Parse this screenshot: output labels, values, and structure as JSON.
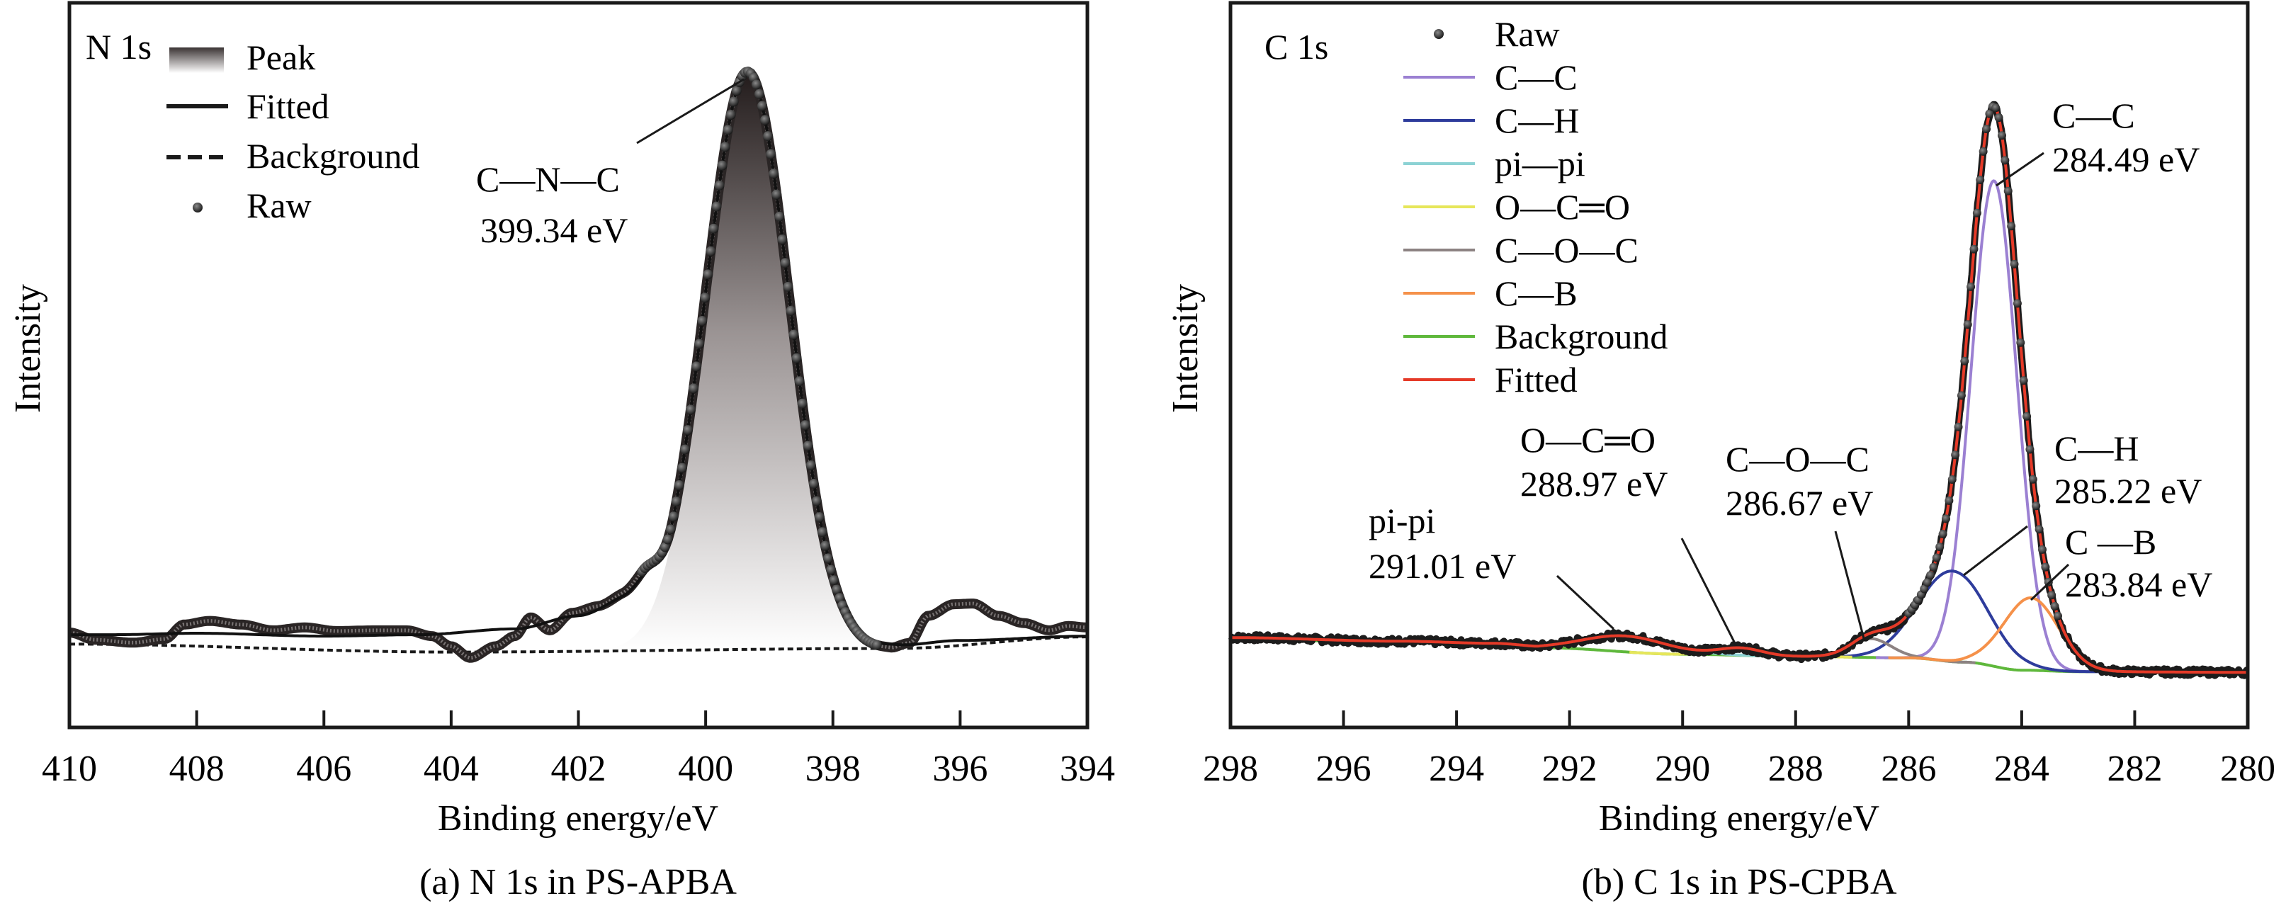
{
  "chart_data": [
    {
      "type": "line",
      "panel": "a",
      "caption": "(a) N 1s in PS-APBA",
      "tag": "N 1s",
      "title": "",
      "xlabel": "Binding energy/eV",
      "ylabel": "Intensity",
      "xlim": [
        410,
        394
      ],
      "ylim": [
        0,
        100
      ],
      "x_ticks": [
        410,
        408,
        406,
        404,
        402,
        400,
        398,
        396,
        394
      ],
      "y_ticks": [],
      "grid": false,
      "legend_position": "top-left",
      "legend": [
        {
          "label": "Peak",
          "marker": "gradient-fill",
          "color": "#2a2424"
        },
        {
          "label": "Fitted",
          "marker": "solid-line",
          "color": "#1a1a1a"
        },
        {
          "label": "Background",
          "marker": "dashed-line",
          "color": "#1a1a1a"
        },
        {
          "label": "Raw",
          "marker": "dot",
          "color": "#1a1a1a"
        }
      ],
      "peaks": [
        {
          "name": "C—N—C",
          "center": 399.34,
          "amplitude": 79.5,
          "fwhm": 1.55
        }
      ],
      "background": {
        "style": "dashed",
        "points": [
          [
            410,
            11.5
          ],
          [
            404,
            10.4
          ],
          [
            397,
            10.9
          ],
          [
            394,
            12.5
          ]
        ]
      },
      "raw_baseline": [
        [
          410,
          13.1
        ],
        [
          409.6,
          12.1
        ],
        [
          409,
          11.7
        ],
        [
          408.5,
          12.2
        ],
        [
          408.2,
          14.2
        ],
        [
          407.8,
          14.7
        ],
        [
          407.3,
          14.2
        ],
        [
          406.8,
          13.4
        ],
        [
          406.3,
          13.8
        ],
        [
          405.8,
          13.3
        ],
        [
          405.2,
          13.4
        ],
        [
          404.7,
          13.4
        ],
        [
          404.3,
          12.6
        ],
        [
          404,
          11.2
        ],
        [
          403.7,
          9.6
        ],
        [
          403.3,
          11.2
        ],
        [
          403,
          12.6
        ],
        [
          402.75,
          15.2
        ],
        [
          402.45,
          13.4
        ],
        [
          402.1,
          15.8
        ],
        [
          401.7,
          16.6
        ],
        [
          401.3,
          17.6
        ],
        [
          401,
          18.2
        ],
        [
          400.5,
          12.5
        ],
        [
          399.3,
          11.0
        ],
        [
          398.2,
          10.8
        ],
        [
          397.5,
          10.6
        ],
        [
          397.1,
          10.8
        ],
        [
          396.8,
          11.6
        ],
        [
          396.5,
          15.4
        ],
        [
          396.1,
          17.0
        ],
        [
          395.8,
          17.1
        ],
        [
          395.4,
          15.4
        ],
        [
          395.0,
          14.4
        ],
        [
          394.6,
          13.4
        ],
        [
          394.3,
          14.0
        ],
        [
          394,
          13.8
        ]
      ],
      "fitted_baseline": [
        [
          410,
          12.8
        ],
        [
          409.3,
          12.8
        ],
        [
          408,
          13.0
        ],
        [
          406,
          12.6
        ],
        [
          404.5,
          12.8
        ],
        [
          403,
          13.6
        ],
        [
          402,
          15.4
        ],
        [
          401.3,
          17.2
        ],
        [
          401,
          17.6
        ],
        [
          400.5,
          12.5
        ],
        [
          399.3,
          11.0
        ],
        [
          397.5,
          10.9
        ],
        [
          397,
          11.3
        ],
        [
          396,
          12.0
        ],
        [
          394,
          12.6
        ]
      ],
      "annotations": [
        {
          "line1": "C—N—C",
          "line2": "399.34 eV",
          "target_energy": 399.34
        }
      ]
    },
    {
      "type": "line",
      "panel": "b",
      "caption": "(b) C 1s in PS-CPBA",
      "tag": "C 1s",
      "title": "",
      "xlabel": "Binding energy/eV",
      "ylabel": "Intensity",
      "xlim": [
        298,
        280
      ],
      "ylim": [
        0,
        100
      ],
      "x_ticks": [
        298,
        296,
        294,
        292,
        290,
        288,
        286,
        284,
        282,
        280
      ],
      "y_ticks": [],
      "grid": false,
      "legend_position": "top-left",
      "legend": [
        {
          "label": "Raw",
          "marker": "dot",
          "color": "#1a1a1a"
        },
        {
          "label": "C—C",
          "marker": "solid-line",
          "color": "#9b80d2"
        },
        {
          "label": "C—H",
          "marker": "solid-line",
          "color": "#2e3c9c"
        },
        {
          "label": "pi—pi",
          "marker": "solid-line",
          "color": "#8cd2d4"
        },
        {
          "label": "O—C═O",
          "marker": "solid-line",
          "color": "#e6e65a"
        },
        {
          "label": "C—O—C",
          "marker": "solid-line",
          "color": "#8c8282"
        },
        {
          "label": "C—B",
          "marker": "solid-line",
          "color": "#f5914a"
        },
        {
          "label": "Background",
          "marker": "solid-line",
          "color": "#5fb83c"
        },
        {
          "label": "Fitted",
          "marker": "solid-line",
          "color": "#e53a28"
        }
      ],
      "components": [
        {
          "name": "C—C",
          "center": 284.49,
          "amplitude": 67.0,
          "fwhm": 0.95,
          "color": "#9b80d2"
        },
        {
          "name": "C—H",
          "center": 285.22,
          "amplitude": 12.5,
          "fwhm": 1.45,
          "color": "#2e3c9c"
        },
        {
          "name": "pi—pi",
          "center": 291.01,
          "amplitude": 2.2,
          "fwhm": 1.7,
          "color": "#8cd2d4"
        },
        {
          "name": "O—C═O",
          "center": 288.97,
          "amplitude": 1.0,
          "fwhm": 0.9,
          "color": "#e6e65a"
        },
        {
          "name": "C—O—C",
          "center": 286.67,
          "amplitude": 2.6,
          "fwhm": 0.85,
          "color": "#8c8282"
        },
        {
          "name": "C—B",
          "center": 283.84,
          "amplitude": 10.0,
          "fwhm": 1.15,
          "color": "#f5914a"
        }
      ],
      "background": {
        "color": "#5fb83c",
        "points": [
          [
            298,
            12.1
          ],
          [
            293.8,
            11.6
          ],
          [
            292.5,
            11.0
          ],
          [
            290,
            10.1
          ],
          [
            288,
            9.8
          ],
          [
            286,
            9.6
          ],
          [
            285,
            9.0
          ],
          [
            284,
            7.9
          ],
          [
            283,
            7.7
          ],
          [
            280,
            7.6
          ]
        ]
      },
      "raw_offset_left": [
        [
          298,
          12.4
        ],
        [
          295,
          11.9
        ],
        [
          293.3,
          11.6
        ],
        [
          292.5,
          11.2
        ]
      ],
      "fitted_color": "#e53a28",
      "annotations": [
        {
          "line1": "pi-pi",
          "line2": "291.01 eV",
          "target_energy": 291.01
        },
        {
          "line1": "O—C═O",
          "line2": "288.97 eV",
          "target_energy": 288.97
        },
        {
          "line1": "C—O—C",
          "line2": "286.67 eV",
          "target_energy": 286.67
        },
        {
          "line1": "C—C",
          "line2": "284.49 eV",
          "target_energy": 284.49
        },
        {
          "line1": "C—H",
          "line2": "285.22 eV",
          "target_energy": 285.22
        },
        {
          "line1": "C —B",
          "line2": "283.84 eV",
          "target_energy": 283.84
        }
      ]
    }
  ]
}
